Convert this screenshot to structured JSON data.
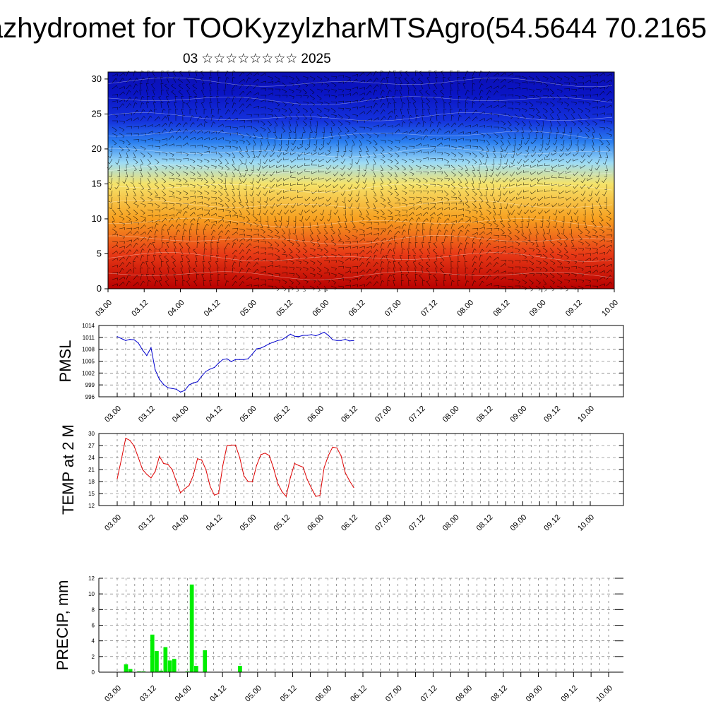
{
  "title": "azhydromet for TOOKyzylzharMTSAgro(54.5644 70.2165",
  "subtitle": {
    "day": "03",
    "month": "☆☆☆☆☆☆☆☆",
    "year": "2025"
  },
  "colors": {
    "pmsl": "#0000cc",
    "temp": "#dd0000",
    "precip": "#00ee00",
    "axis": "#000000",
    "grid": "#555555"
  },
  "chart_data": [
    {
      "type": "heatmap",
      "panel": "cross-section",
      "x_ticks": [
        "03.00",
        "03.12",
        "04.00",
        "04.12",
        "05.00",
        "05.12",
        "06.00",
        "06.12",
        "07.00",
        "07.12",
        "08.00",
        "08.12",
        "09.00",
        "09.12",
        "10.00"
      ],
      "y_ticks": [
        "0",
        "5",
        "10",
        "15",
        "20",
        "25",
        "30"
      ],
      "ylim": [
        0,
        31
      ],
      "color_bands": [
        {
          "level": 0,
          "color": "#b80000"
        },
        {
          "level": 5,
          "color": "#e83a16"
        },
        {
          "level": 10,
          "color": "#f7a020"
        },
        {
          "level": 15,
          "color": "#f5e36a"
        },
        {
          "level": 18,
          "color": "#9edcf5"
        },
        {
          "level": 21,
          "color": "#2a7ff0"
        },
        {
          "level": 24,
          "color": "#1432dc"
        },
        {
          "level": 28,
          "color": "#0a14c4"
        },
        {
          "level": 31,
          "color": "#0c10b4"
        }
      ],
      "overlay": "wind barbs"
    },
    {
      "type": "line",
      "ylabel": "PMSL",
      "ylim": [
        996,
        1014
      ],
      "y_ticks": [
        "996",
        "999",
        "1002",
        "1005",
        "1008",
        "1011",
        "1014"
      ],
      "x_ticks": [
        "03.00",
        "03.12",
        "04.00",
        "04.12",
        "05.00",
        "05.12",
        "06.00",
        "06.12",
        "07.00",
        "07.12",
        "08.00",
        "08.12",
        "09.00",
        "09.12",
        "10.00"
      ],
      "x": [
        0,
        0.125,
        0.25,
        0.375,
        0.5,
        0.625,
        0.75,
        0.875,
        1,
        1.125,
        1.25,
        1.375,
        1.5,
        1.625,
        1.75,
        1.875,
        2,
        2.125,
        2.25,
        2.375,
        2.5,
        2.625,
        2.75,
        2.875,
        3,
        3.125,
        3.25,
        3.375,
        3.5,
        3.625,
        3.75,
        3.875,
        4,
        4.125,
        4.25,
        4.375,
        4.5,
        4.625,
        4.75,
        4.875,
        5,
        5.125,
        5.25,
        5.375,
        5.5,
        5.625,
        5.75,
        5.875,
        6,
        6.125,
        6.25,
        6.375,
        6.5,
        6.625,
        6.75,
        6.875,
        7
      ],
      "series": [
        {
          "values": [
            1011.2,
            1010.7,
            1010.2,
            1010.5,
            1010.4,
            1009.6,
            1007.8,
            1006.4,
            1008.4,
            1002.8,
            1000.4,
            999.1,
            998.3,
            998.1,
            997.9,
            997.2,
            997.6,
            999.0,
            999.5,
            999.8,
            1001.2,
            1002.4,
            1003.0,
            1003.4,
            1004.5,
            1005.4,
            1005.6,
            1004.9,
            1005.4,
            1005.4,
            1005.4,
            1005.6,
            1006.8,
            1008.1,
            1008.3,
            1008.8,
            1009.4,
            1009.8,
            1010.2,
            1010.4,
            1011.1,
            1011.8,
            1011.3,
            1011.2,
            1011.5,
            1011.5,
            1011.7,
            1011.4,
            1011.8,
            1012.3,
            1011.5,
            1010.4,
            1010.2,
            1010.2,
            1010.5,
            1010.1,
            1010.2
          ]
        }
      ]
    },
    {
      "type": "line",
      "ylabel": "TEMP at 2 M",
      "ylim": [
        12,
        30
      ],
      "y_ticks": [
        "12",
        "15",
        "18",
        "21",
        "24",
        "27",
        "30"
      ],
      "x_ticks": [
        "03.00",
        "03.12",
        "04.00",
        "04.12",
        "05.00",
        "05.12",
        "06.00",
        "06.12",
        "07.00",
        "07.12",
        "08.00",
        "08.12",
        "09.00",
        "09.12",
        "10.00"
      ],
      "x": [
        0,
        0.125,
        0.25,
        0.375,
        0.5,
        0.625,
        0.75,
        0.875,
        1,
        1.125,
        1.25,
        1.375,
        1.5,
        1.625,
        1.75,
        1.875,
        2,
        2.125,
        2.25,
        2.375,
        2.5,
        2.625,
        2.75,
        2.875,
        3,
        3.125,
        3.25,
        3.375,
        3.5,
        3.625,
        3.75,
        3.875,
        4,
        4.125,
        4.25,
        4.375,
        4.5,
        4.625,
        4.75,
        4.875,
        5,
        5.125,
        5.25,
        5.375,
        5.5,
        5.625,
        5.75,
        5.875,
        6,
        6.125,
        6.25,
        6.375,
        6.5,
        6.625,
        6.75,
        6.875,
        7
      ],
      "series": [
        {
          "values": [
            18.7,
            23.6,
            28.8,
            28.3,
            26.9,
            24.0,
            21.0,
            19.8,
            18.9,
            20.5,
            24.3,
            22.5,
            22.3,
            21.0,
            18.0,
            15.2,
            16.2,
            17.0,
            19.5,
            23.7,
            23.4,
            21.0,
            16.8,
            14.6,
            15.0,
            22.0,
            27.0,
            27.1,
            27.1,
            24.0,
            19.4,
            18.0,
            17.9,
            22.0,
            24.7,
            25.1,
            24.5,
            21.4,
            17.6,
            15.5,
            14.3,
            19.0,
            22.5,
            22.0,
            21.6,
            18.5,
            16.3,
            14.3,
            14.5,
            21.5,
            24.5,
            26.6,
            26.4,
            24.4,
            20.2,
            18.2,
            16.5
          ]
        }
      ]
    },
    {
      "type": "bar",
      "ylabel": "PRECIP, mm",
      "ylim": [
        0,
        12
      ],
      "y_ticks": [
        "0",
        "2",
        "4",
        "6",
        "8",
        "10",
        "12"
      ],
      "x_ticks": [
        "03.00",
        "03.12",
        "04.00",
        "04.12",
        "05.00",
        "05.12",
        "06.00",
        "06.12",
        "07.00",
        "07.12",
        "08.00",
        "08.12",
        "09.00",
        "09.12",
        "10.00"
      ],
      "x": [
        0.25,
        0.375,
        0.625,
        0.75,
        1.0,
        1.125,
        1.25,
        1.375,
        1.5,
        1.625,
        1.75,
        2.0,
        2.125,
        2.25,
        2.5,
        3.5
      ],
      "values": [
        1.0,
        0.4,
        0.1,
        0.1,
        4.8,
        2.7,
        0.2,
        3.2,
        1.5,
        1.7,
        0.0,
        0.1,
        11.2,
        0.8,
        2.8,
        0.8
      ]
    }
  ]
}
